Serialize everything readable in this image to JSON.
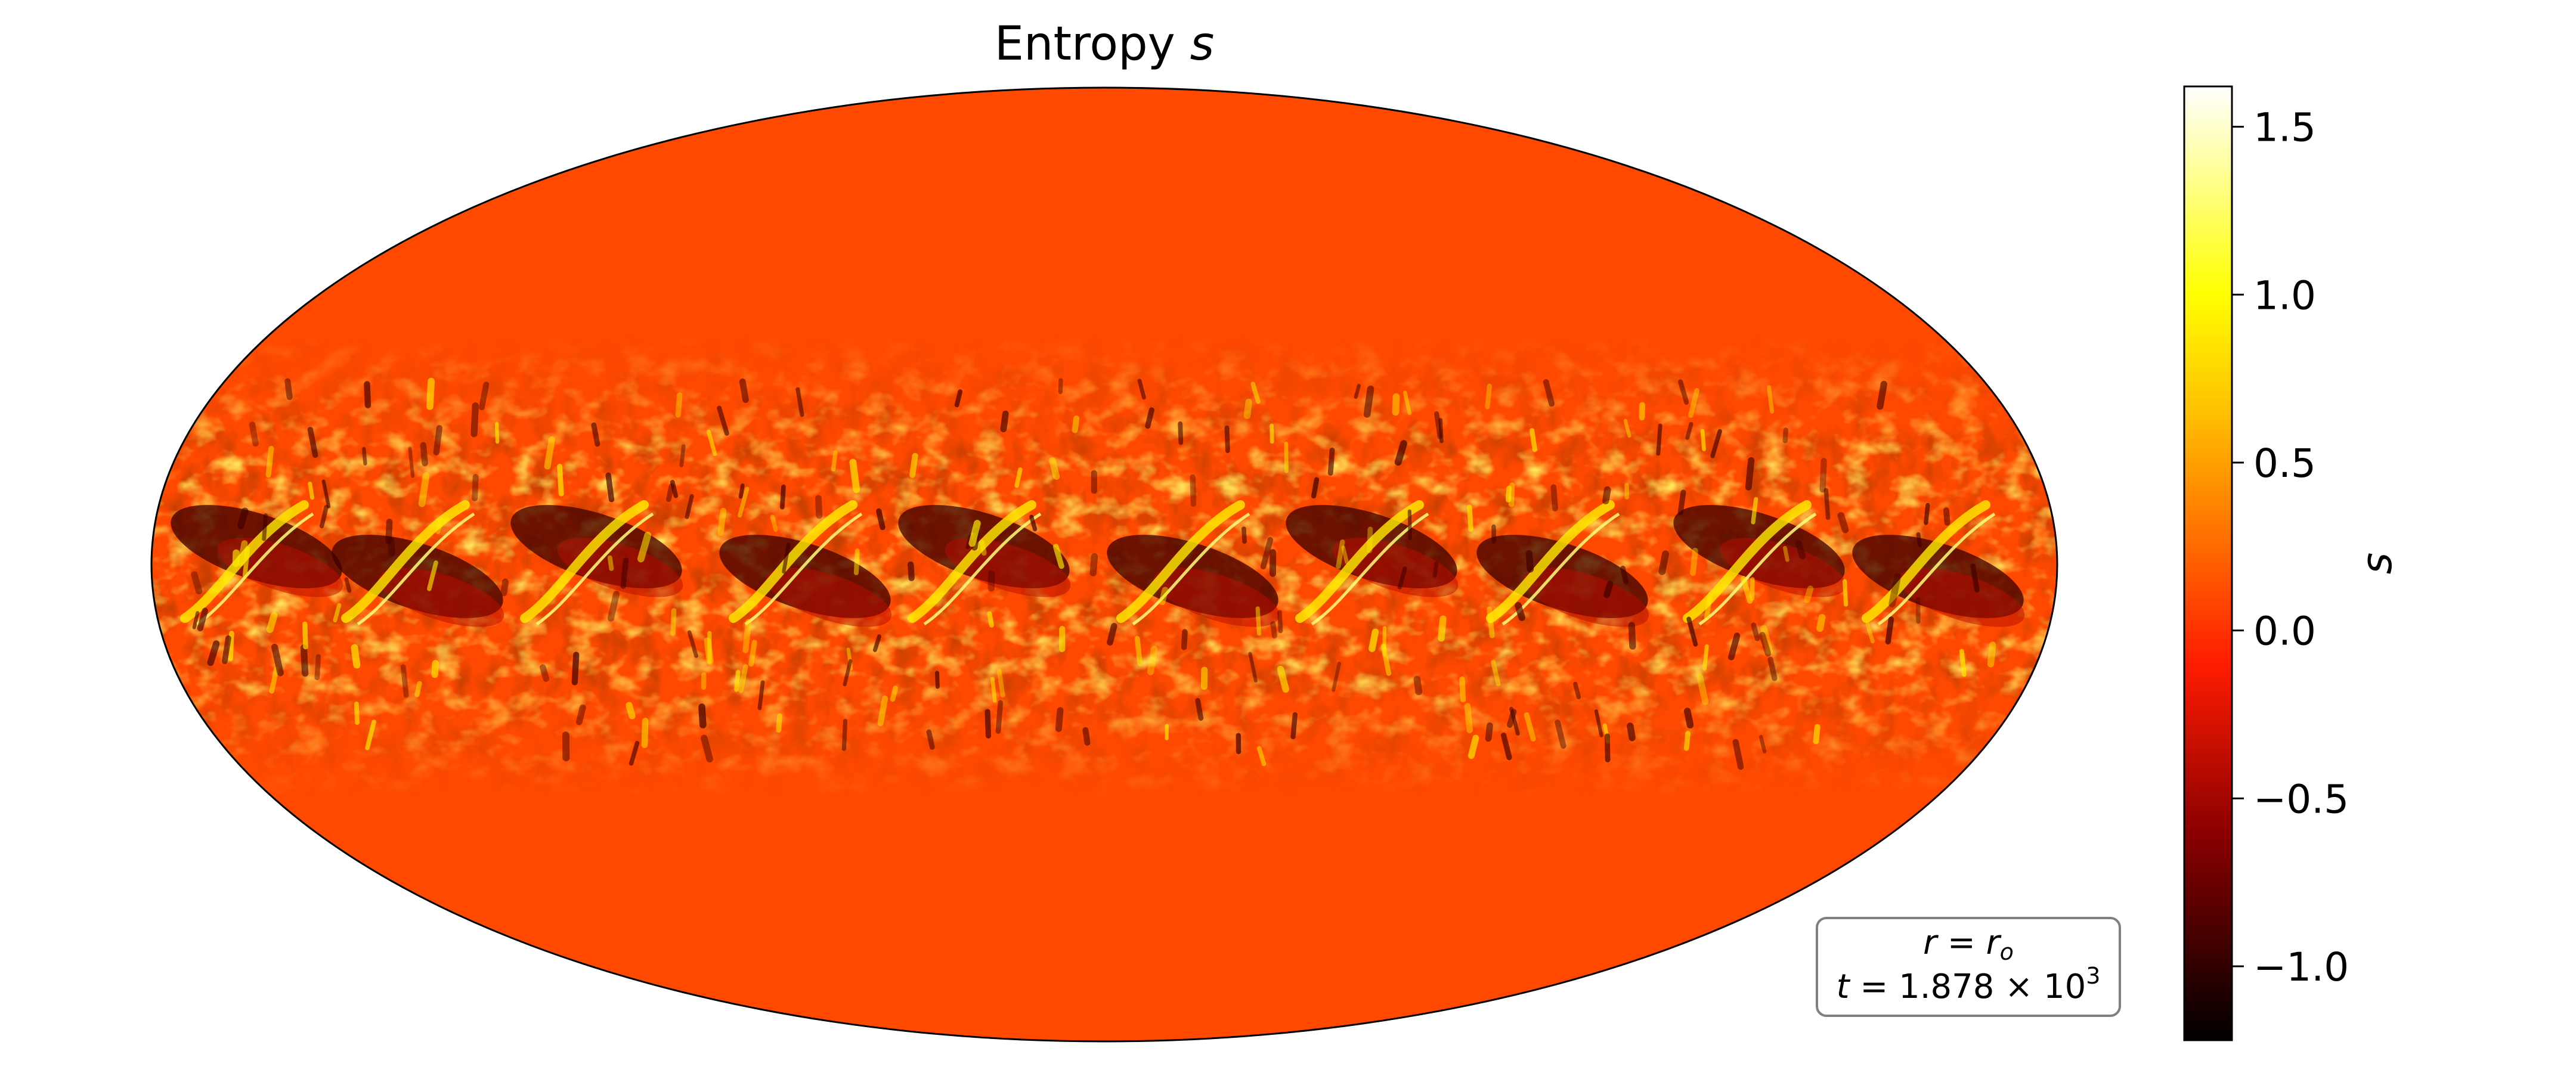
{
  "chart_data": {
    "type": "heatmap",
    "projection": "mollweide",
    "title": "Entropy s",
    "title_parts": {
      "text": "Entropy ",
      "symbol": "s"
    },
    "colorbar": {
      "label": "s",
      "colormap": "hot",
      "range": [
        -1.22,
        1.62
      ],
      "ticks": [
        {
          "value": 1.5,
          "label": "1.5"
        },
        {
          "value": 1.0,
          "label": "1.0"
        },
        {
          "value": 0.5,
          "label": "0.5"
        },
        {
          "value": 0.0,
          "label": "0.0"
        },
        {
          "value": -0.5,
          "label": "−0.5"
        },
        {
          "value": -1.0,
          "label": "−1.0"
        }
      ],
      "stops": [
        {
          "v": -1.22,
          "color": "#000000"
        },
        {
          "v": -0.6,
          "color": "#8c0000"
        },
        {
          "v": -0.1,
          "color": "#ff1c00"
        },
        {
          "v": 0.25,
          "color": "#ff6a00"
        },
        {
          "v": 0.65,
          "color": "#ffc000"
        },
        {
          "v": 1.0,
          "color": "#ffff00"
        },
        {
          "v": 1.62,
          "color": "#ffffff"
        }
      ]
    },
    "background_value": 0.1,
    "field_description": "belt of plumes and wave structure near the equator; nearly uniform at high latitudes",
    "annotation": {
      "line1": {
        "var": "r",
        "eq": " = ",
        "sym": "r",
        "sub": "o"
      },
      "line2": {
        "var": "t",
        "eq": " = 1.878 × 10",
        "sup": "3"
      }
    }
  }
}
